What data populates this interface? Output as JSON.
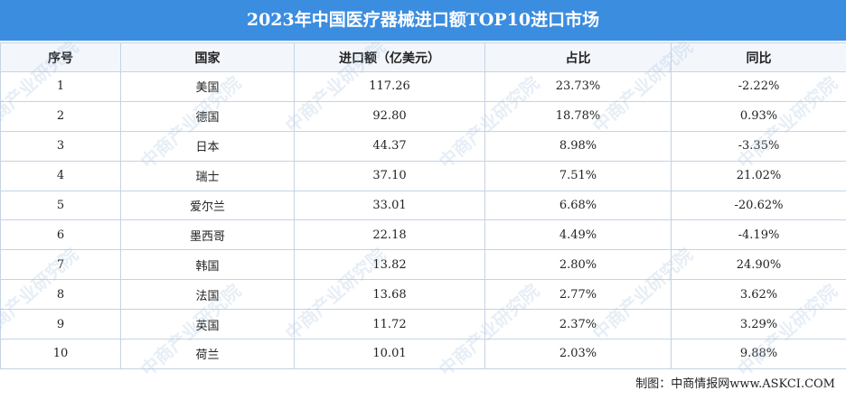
{
  "header": {
    "title": "2023年中国医疗器械进口额TOP10进口市场"
  },
  "table": {
    "columns": [
      "序号",
      "国家",
      "进口额（亿美元）",
      "占比",
      "同比"
    ],
    "rows": [
      [
        "1",
        "美国",
        "117.26",
        "23.73%",
        "-2.22%"
      ],
      [
        "2",
        "德国",
        "92.80",
        "18.78%",
        "0.93%"
      ],
      [
        "3",
        "日本",
        "44.37",
        "8.98%",
        "-3.35%"
      ],
      [
        "4",
        "瑞士",
        "37.10",
        "7.51%",
        "21.02%"
      ],
      [
        "5",
        "爱尔兰",
        "33.01",
        "6.68%",
        "-20.62%"
      ],
      [
        "6",
        "墨西哥",
        "22.18",
        "4.49%",
        "-4.19%"
      ],
      [
        "7",
        "韩国",
        "13.82",
        "2.80%",
        "24.90%"
      ],
      [
        "8",
        "法国",
        "13.68",
        "2.77%",
        "3.62%"
      ],
      [
        "9",
        "英国",
        "11.72",
        "2.37%",
        "3.29%"
      ],
      [
        "10",
        "荷兰",
        "10.01",
        "2.03%",
        "9.88%"
      ]
    ]
  },
  "footer": {
    "source": "制图：中商情报网www.ASKCI.COM"
  },
  "watermark": "中商产业研究院"
}
